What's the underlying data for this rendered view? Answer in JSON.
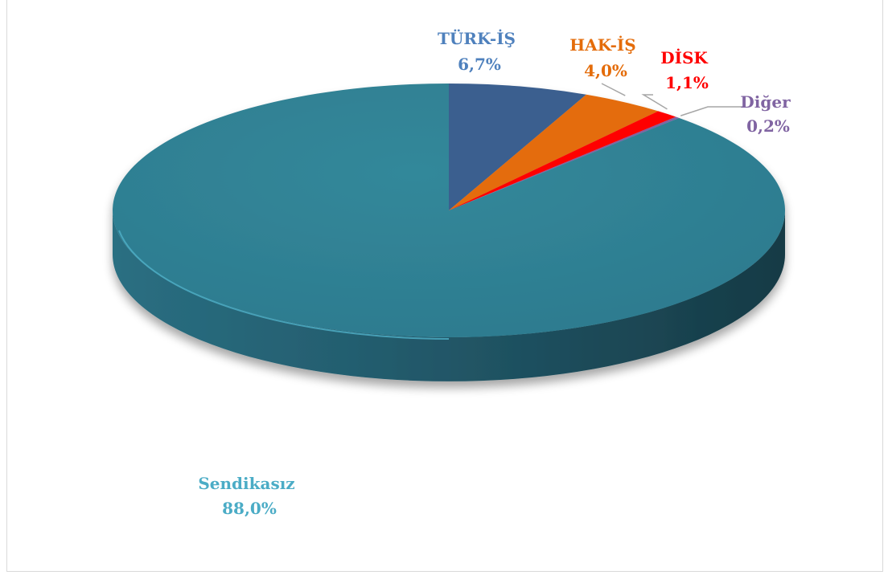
{
  "chart_data": {
    "type": "pie",
    "title": "",
    "legend": "none",
    "slices": [
      {
        "name": "TÜRK-İŞ",
        "value_label": "6,7%",
        "value": 6.7,
        "color": "#3B5E8F",
        "label_color": "#4F81BD"
      },
      {
        "name": "HAK-İŞ",
        "value_label": "4,0%",
        "value": 4.0,
        "color": "#E46C0A",
        "label_color": "#E46C0A"
      },
      {
        "name": "DİSK",
        "value_label": "1,1%",
        "value": 1.1,
        "color": "#FF0000",
        "label_color": "#FF0000"
      },
      {
        "name": "Diğer",
        "value_label": "0,2%",
        "value": 0.2,
        "color": "#8064A2",
        "label_color": "#8064A2"
      },
      {
        "name": "Sendikasız",
        "value_label": "88,0%",
        "value": 88.0,
        "color": "#31849B",
        "label_color": "#4BACC6"
      }
    ]
  }
}
